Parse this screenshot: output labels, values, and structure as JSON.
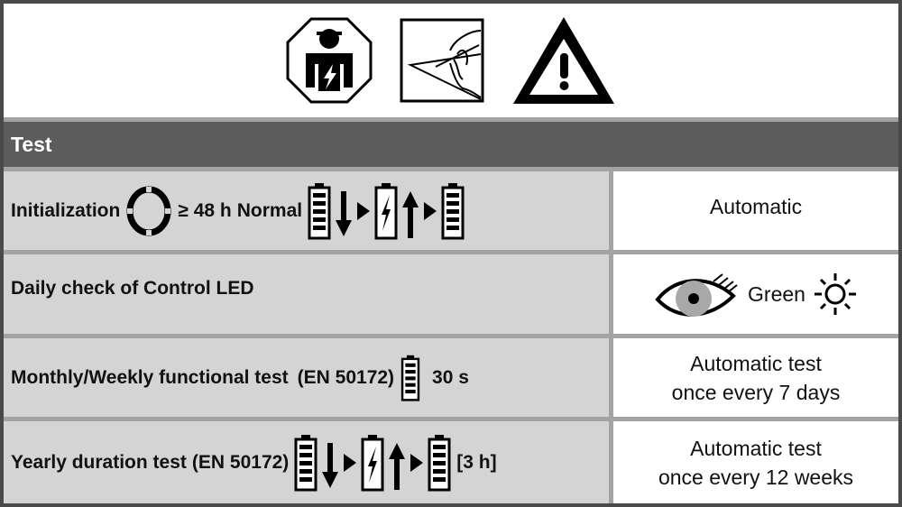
{
  "symbols": [
    "electrician-icon",
    "read-instructions-icon",
    "warning-icon"
  ],
  "header": {
    "title": "Test"
  },
  "rows": [
    {
      "label": "Initialization",
      "duration": "≥ 48 h",
      "mode": "Normal",
      "result": "Automatic"
    },
    {
      "label": "Daily check of Control LED",
      "result": "Green"
    },
    {
      "label": "Monthly/Weekly functional test",
      "standard": "(EN 50172)",
      "duration": "30 s",
      "result_line1": "Automatic test",
      "result_line2": "once every 7 days"
    },
    {
      "label": "Yearly duration test",
      "standard": "(EN 50172)",
      "duration": "[3 h]",
      "result_line1": "Automatic test",
      "result_line2": "once every 12 weeks"
    }
  ],
  "colors": {
    "header_bg": "#5c5c5c",
    "row_bg": "#d4d4d4",
    "border": "#a3a3a3",
    "eye_iris": "#a8a8a8"
  }
}
